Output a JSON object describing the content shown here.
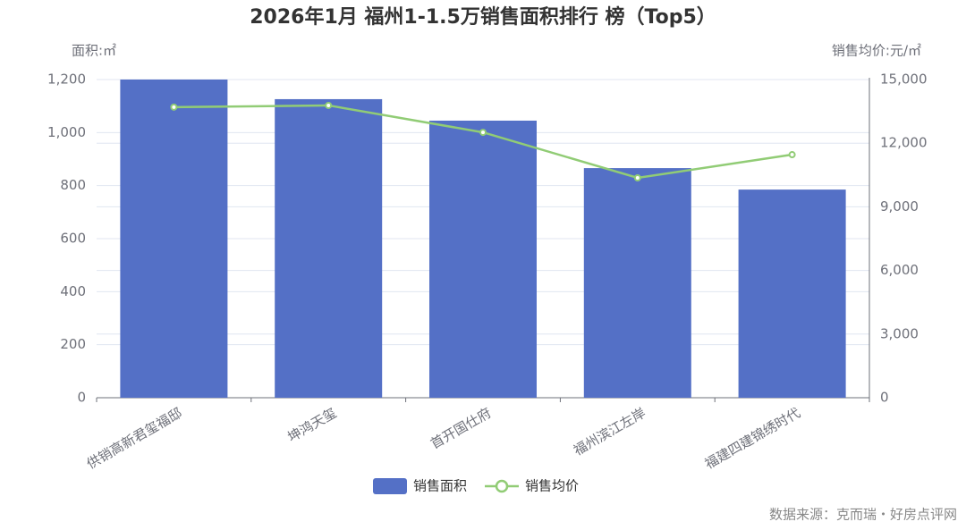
{
  "chart_data": {
    "type": "bar",
    "title": "2026年1月 福州1-1.5万销售面积排行 榜（Top5）",
    "y_axis_label": "面积:㎡",
    "y2_axis_label": "销售均价:元/㎡",
    "source": "数据来源：克而瑞・好房点评网",
    "categories": [
      "供销高新君玺福邸",
      "坤鸿天玺",
      "首开国仕府",
      "福州滨江左岸",
      "福建四建锦绣时代"
    ],
    "series": [
      {
        "name": "销售面积",
        "type": "bar",
        "color": "#5470c6",
        "values": [
          1200,
          1126,
          1045,
          866,
          785
        ]
      },
      {
        "name": "销售均价",
        "type": "line",
        "axis": "y2",
        "color": "#91cc75",
        "values": [
          13700,
          13780,
          12510,
          10365,
          11460
        ]
      }
    ],
    "ylim": [
      0,
      1200
    ],
    "yticks": [
      0,
      200,
      400,
      600,
      800,
      {
        "value": 1000,
        "label": "1,000"
      },
      {
        "value": 1200,
        "label": "1,200"
      }
    ],
    "y2lim": [
      0,
      15000
    ],
    "y2ticks": [
      0,
      {
        "value": 3000,
        "label": "3,000"
      },
      {
        "value": 6000,
        "label": "6,000"
      },
      {
        "value": 9000,
        "label": "9,000"
      },
      {
        "value": 12000,
        "label": "12,000"
      },
      {
        "value": 15000,
        "label": "15,000"
      }
    ],
    "grid": true
  }
}
